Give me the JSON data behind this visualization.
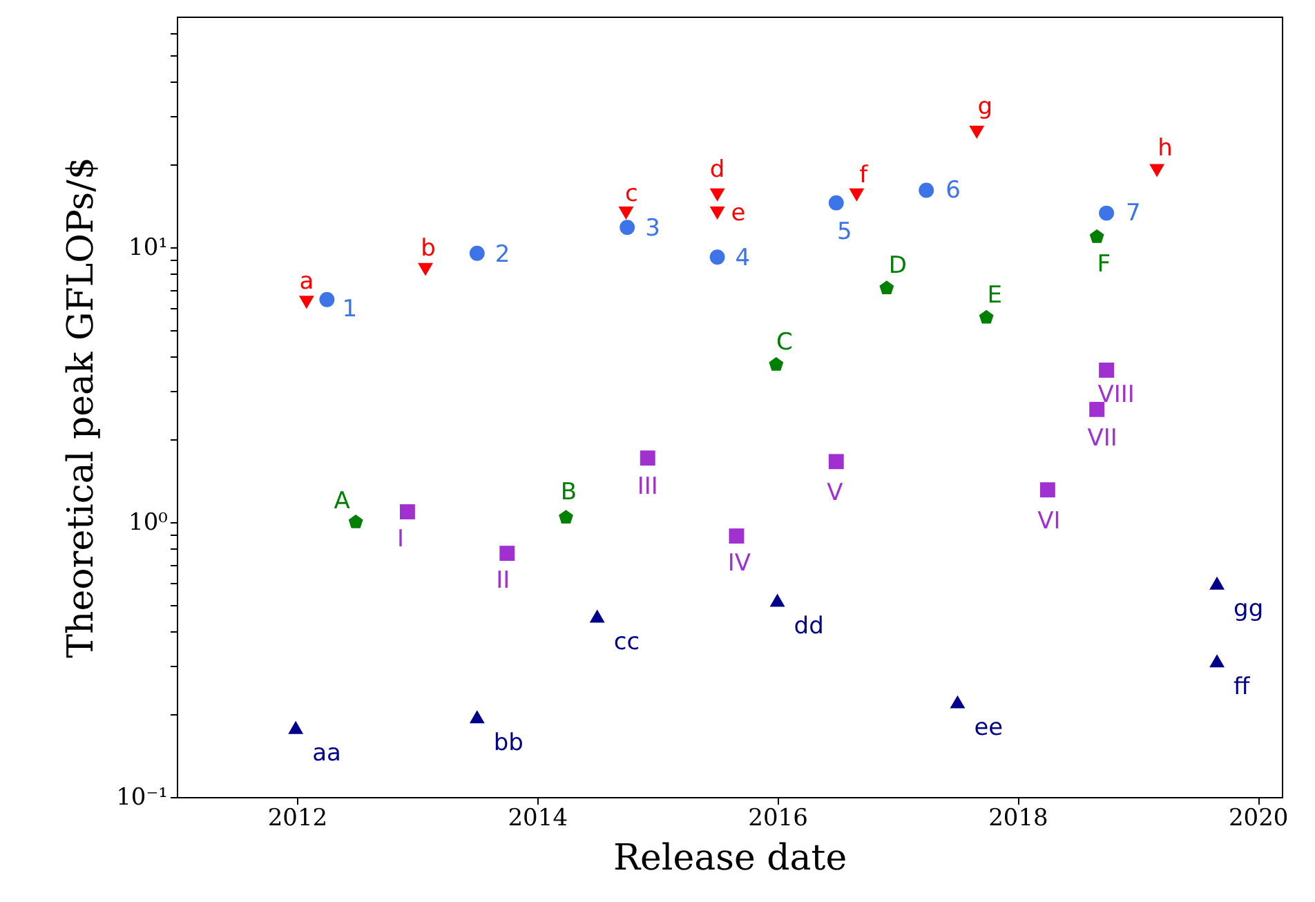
{
  "chart_data": {
    "type": "scatter",
    "xlabel": "Release date",
    "ylabel": "Theoretical peak GFLOPs/$",
    "log": "y",
    "grid": false,
    "xlim": [
      2011.0,
      2020.2
    ],
    "xticks": [
      2012,
      2014,
      2016,
      2018,
      2020
    ],
    "ylim": [
      0.1,
      69
    ],
    "yticks": [
      {
        "value": 0.1,
        "label": "10⁻¹"
      },
      {
        "value": 0.2,
        "label": null
      },
      {
        "value": 0.3,
        "label": null
      },
      {
        "value": 0.4,
        "label": null
      },
      {
        "value": 0.5,
        "label": null
      },
      {
        "value": 0.6,
        "label": null
      },
      {
        "value": 0.7,
        "label": null
      },
      {
        "value": 0.8,
        "label": null
      },
      {
        "value": 0.9,
        "label": null
      },
      {
        "value": 1,
        "label": "10⁰"
      },
      {
        "value": 2,
        "label": null
      },
      {
        "value": 3,
        "label": null
      },
      {
        "value": 4,
        "label": null
      },
      {
        "value": 5,
        "label": null
      },
      {
        "value": 6,
        "label": null
      },
      {
        "value": 7,
        "label": null
      },
      {
        "value": 8,
        "label": null
      },
      {
        "value": 9,
        "label": null
      },
      {
        "value": 10,
        "label": "10¹"
      },
      {
        "value": 20,
        "label": null
      },
      {
        "value": 30,
        "label": null
      },
      {
        "value": 40,
        "label": null
      },
      {
        "value": 50,
        "label": null
      },
      {
        "value": 60,
        "label": null
      }
    ],
    "series": [
      {
        "color": "#ff0000",
        "marker": "triangle-down",
        "x": [
          2012.08,
          2013.07,
          2014.74,
          2015.5,
          2015.5,
          2016.66,
          2017.66,
          2019.16
        ],
        "values": [
          6.3,
          8.3,
          13.3,
          15.5,
          13.3,
          15.5,
          26.2,
          19.0
        ]
      },
      {
        "color": "#3d74e8",
        "marker": "circle",
        "x": [
          2012.25,
          2013.5,
          2014.75,
          2015.5,
          2016.49,
          2017.24,
          2018.74
        ],
        "values": [
          6.45,
          9.5,
          11.8,
          9.2,
          14.5,
          16.1,
          13.3
        ]
      },
      {
        "color": "#008000",
        "x": [
          2012.49,
          2014.24,
          2015.99,
          2016.91,
          2017.74,
          2018.66
        ],
        "values": [
          1.0,
          1.04,
          3.74,
          7.1,
          5.55,
          10.9
        ]
      },
      {
        "color": "#a030d0",
        "marker": "square",
        "x": [
          2012.92,
          2013.75,
          2014.92,
          2015.66,
          2016.49,
          2018.25,
          2018.66,
          2018.74
        ],
        "values": [
          1.09,
          0.77,
          1.71,
          0.89,
          1.66,
          1.31,
          2.57,
          3.57
        ]
      },
      {
        "color": "#00008b",
        "marker": "triangle",
        "x": [
          2011.99,
          2013.5,
          2014.5,
          2016.0,
          2017.5,
          2019.66,
          2019.66
        ],
        "values": [
          0.179,
          0.196,
          0.455,
          0.52,
          0.222,
          0.313,
          0.6
        ]
      }
    ],
    "annotations": [
      {
        "text": "a",
        "x": 2012.08,
        "y": 6.3
      },
      {
        "text": "b",
        "x": 2013.07,
        "y": 8.3
      },
      {
        "text": "c",
        "x": 2014.74,
        "y": 13.3
      },
      {
        "text": "d",
        "x": 2015.5,
        "y": 15.5
      },
      {
        "text": "e",
        "x": 2015.5,
        "y": 13.3
      },
      {
        "text": "f",
        "x": 2016.66,
        "y": 15.5
      },
      {
        "text": "g",
        "x": 2017.66,
        "y": 26.2
      },
      {
        "text": "h",
        "x": 2019.16,
        "y": 19.0
      },
      {
        "text": "1",
        "x": 2012.25,
        "y": 6.45
      },
      {
        "text": "2",
        "x": 2013.5,
        "y": 9.5
      },
      {
        "text": "3",
        "x": 2014.75,
        "y": 11.8
      },
      {
        "text": "4",
        "x": 2015.5,
        "y": 9.2
      },
      {
        "text": "5",
        "x": 2016.49,
        "y": 14.5
      },
      {
        "text": "6",
        "x": 2017.24,
        "y": 16.1
      },
      {
        "text": "7",
        "x": 2018.74,
        "y": 13.3
      },
      {
        "text": "A",
        "x": 2012.49,
        "y": 1.0
      },
      {
        "text": "B",
        "x": 2014.24,
        "y": 1.04
      },
      {
        "text": "C",
        "x": 2015.99,
        "y": 3.74
      },
      {
        "text": "D",
        "x": 2016.91,
        "y": 7.1
      },
      {
        "text": "E",
        "x": 2017.74,
        "y": 5.55
      },
      {
        "text": "F",
        "x": 2018.66,
        "y": 10.9
      },
      {
        "text": "I",
        "x": 2012.92,
        "y": 1.09
      },
      {
        "text": "II",
        "x": 2013.75,
        "y": 0.77
      },
      {
        "text": "III",
        "x": 2014.92,
        "y": 1.71
      },
      {
        "text": "IV",
        "x": 2015.66,
        "y": 0.89
      },
      {
        "text": "V",
        "x": 2016.49,
        "y": 1.66
      },
      {
        "text": "VI",
        "x": 2018.25,
        "y": 1.31
      },
      {
        "text": "VII",
        "x": 2018.66,
        "y": 2.57
      },
      {
        "text": "VIII",
        "x": 2018.74,
        "y": 3.57
      },
      {
        "text": "aa",
        "x": 2011.99,
        "y": 0.179
      },
      {
        "text": "bb",
        "x": 2013.5,
        "y": 0.196
      },
      {
        "text": "cc",
        "x": 2014.5,
        "y": 0.455
      },
      {
        "text": "dd",
        "x": 2016.0,
        "y": 0.52
      },
      {
        "text": "ee",
        "x": 2017.5,
        "y": 0.222
      },
      {
        "text": "ff",
        "x": 2019.66,
        "y": 0.313
      },
      {
        "text": "gg",
        "x": 2019.66,
        "y": 0.6
      }
    ]
  }
}
